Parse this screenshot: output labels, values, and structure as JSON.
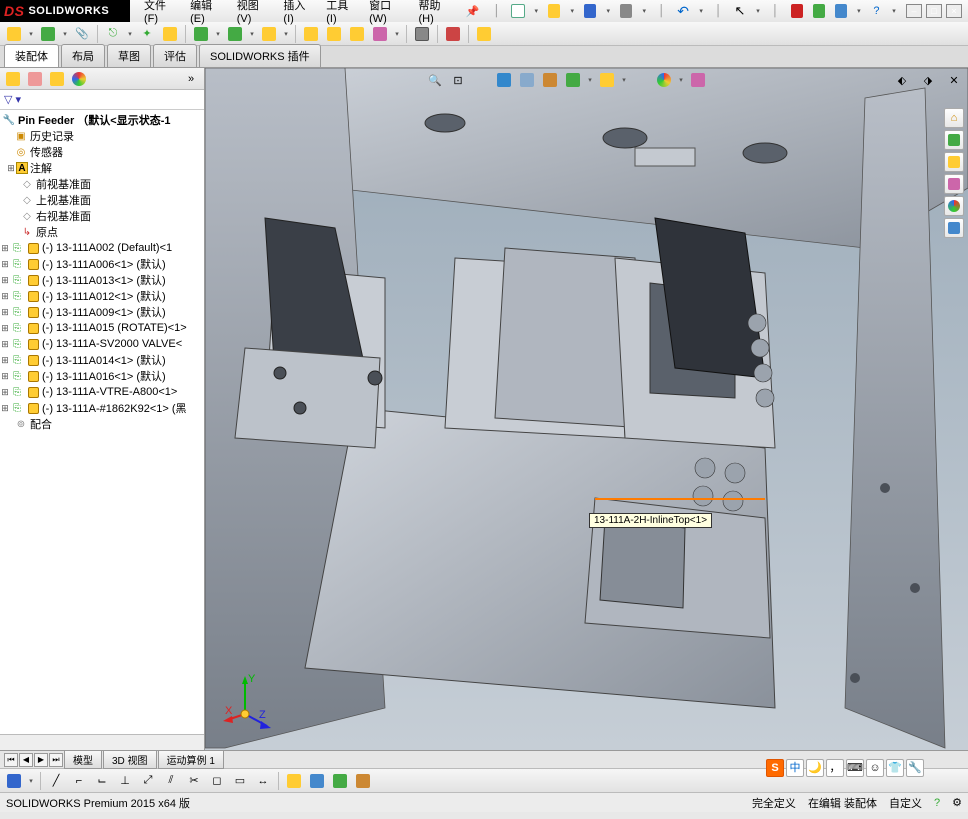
{
  "app": {
    "brand": "SOLIDWORKS"
  },
  "menu": {
    "file": "文件(F)",
    "edit": "编辑(E)",
    "view": "视图(V)",
    "insert": "插入(I)",
    "tools": "工具(I)",
    "window": "窗口(W)",
    "help": "帮助(H)"
  },
  "tabs": {
    "assembly": "装配体",
    "layout": "布局",
    "sketch": "草图",
    "evaluate": "评估",
    "plugins": "SOLIDWORKS 插件"
  },
  "filter_label": "▽ ▾",
  "tree": {
    "root": "Pin Feeder （默认<显示状态-1",
    "history": "历史记录",
    "sensors": "传感器",
    "annotations": "注解",
    "front": "前视基准面",
    "top": "上视基准面",
    "right": "右视基准面",
    "origin": "原点",
    "parts": [
      "(-) 13-111A002 (Default)<1",
      "(-) 13-111A006<1> (默认)",
      "(-) 13-111A013<1> (默认)",
      "(-) 13-111A012<1> (默认)",
      "(-) 13-111A009<1> (默认)",
      "(-) 13-111A015 (ROTATE)<1>",
      "(-) 13-111A-SV2000 VALVE<",
      "(-) 13-111A014<1> (默认)",
      "(-) 13-111A016<1> (默认)",
      "(-) 13-111A-VTRE-A800<1>",
      "(-) 13-111A-#1862K92<1> (黑"
    ],
    "mates": "配合"
  },
  "tooltip": "13-111A-2H-InlineTop<1>",
  "bottom_tabs": {
    "model": "模型",
    "threed": "3D 视图",
    "motion": "运动算例 1"
  },
  "status": {
    "version": "SOLIDWORKS Premium 2015 x64 版",
    "define": "完全定义",
    "editing": "在编辑 装配体",
    "custom": "自定义"
  },
  "ime": {
    "zh": "中"
  },
  "triad": {
    "x": "X",
    "y": "Y",
    "z": "Z"
  },
  "colors": {
    "accent_orange": "#ff7b00",
    "viewport_top": "#9aaab8",
    "viewport_bottom": "#c6ced6",
    "metal_light": "#c4c9d0",
    "metal_mid": "#9ba3ad",
    "metal_dark": "#6f7680"
  }
}
